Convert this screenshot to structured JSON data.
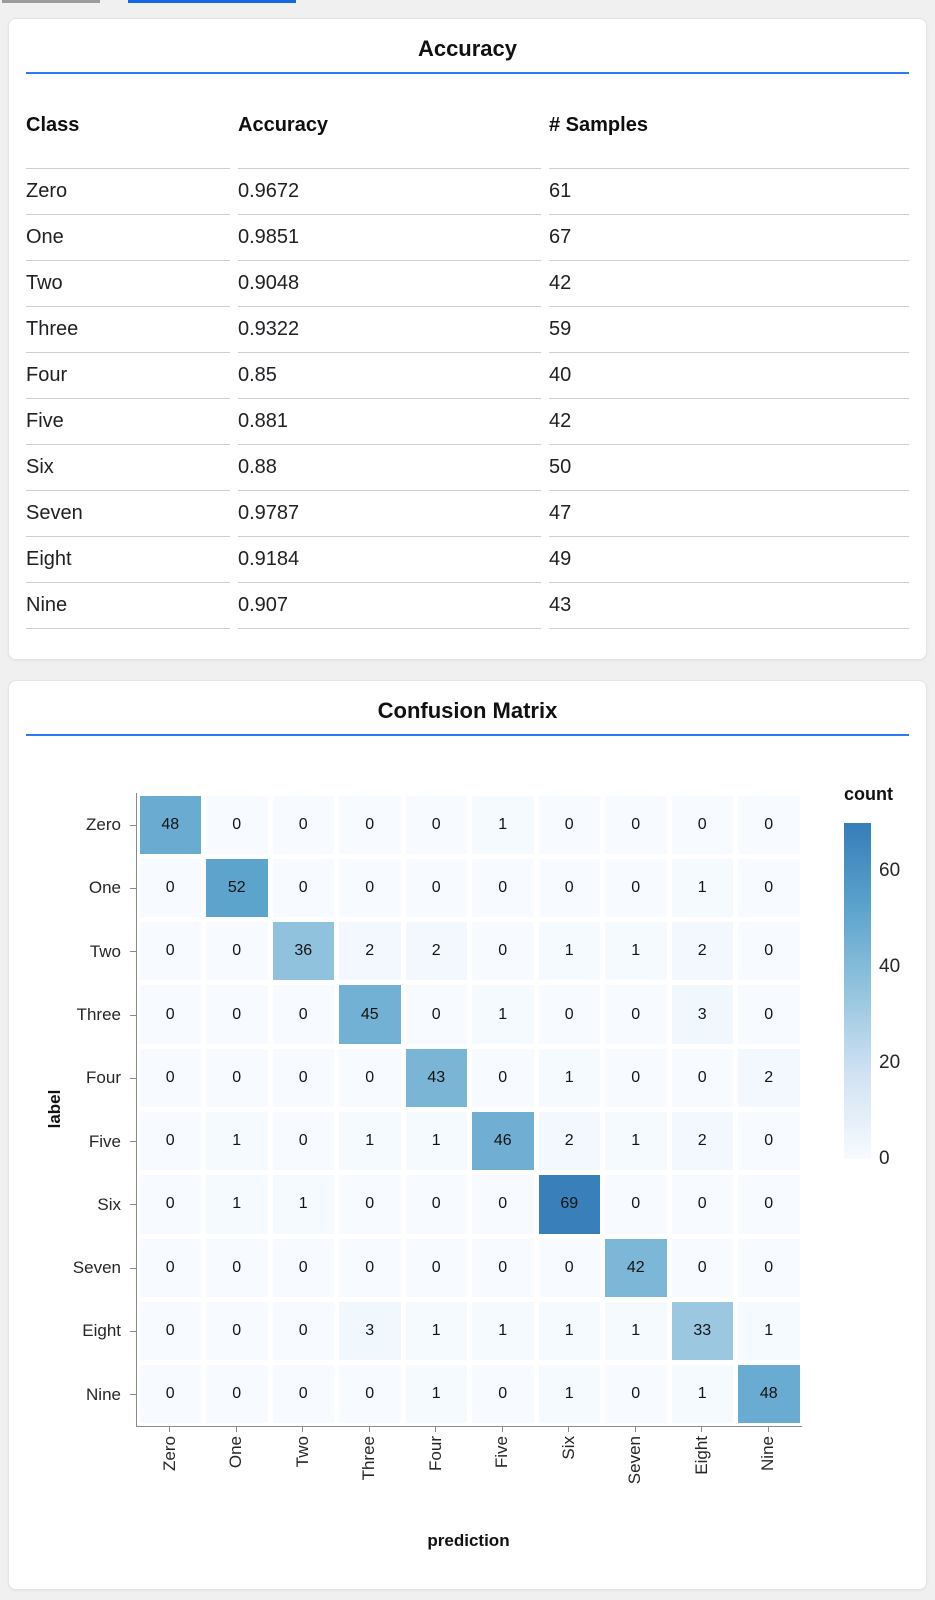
{
  "colors": {
    "accent_rule": "#2a7bf6",
    "top_bar_gray": "#9b9b9b",
    "top_bar_blue": "#1668e3",
    "heat_ramp": [
      "#f7fbff",
      "#d1e2f3",
      "#94c4de",
      "#5ba3cc",
      "#377db8"
    ]
  },
  "accuracy_table": {
    "title": "Accuracy",
    "columns": [
      "Class",
      "Accuracy",
      "# Samples"
    ],
    "rows": [
      [
        "Zero",
        "0.9672",
        "61"
      ],
      [
        "One",
        "0.9851",
        "67"
      ],
      [
        "Two",
        "0.9048",
        "42"
      ],
      [
        "Three",
        "0.9322",
        "59"
      ],
      [
        "Four",
        "0.85",
        "40"
      ],
      [
        "Five",
        "0.881",
        "42"
      ],
      [
        "Six",
        "0.88",
        "50"
      ],
      [
        "Seven",
        "0.9787",
        "47"
      ],
      [
        "Eight",
        "0.9184",
        "49"
      ],
      [
        "Nine",
        "0.907",
        "43"
      ]
    ]
  },
  "chart_data": {
    "type": "heatmap",
    "title": "Confusion Matrix",
    "xlabel": "prediction",
    "ylabel": "label",
    "x_categories": [
      "Zero",
      "One",
      "Two",
      "Three",
      "Four",
      "Five",
      "Six",
      "Seven",
      "Eight",
      "Nine"
    ],
    "y_categories": [
      "Zero",
      "One",
      "Two",
      "Three",
      "Four",
      "Five",
      "Six",
      "Seven",
      "Eight",
      "Nine"
    ],
    "matrix": [
      [
        48,
        0,
        0,
        0,
        0,
        1,
        0,
        0,
        0,
        0
      ],
      [
        0,
        52,
        0,
        0,
        0,
        0,
        0,
        0,
        1,
        0
      ],
      [
        0,
        0,
        36,
        2,
        2,
        0,
        1,
        1,
        2,
        0
      ],
      [
        0,
        0,
        0,
        45,
        0,
        1,
        0,
        0,
        3,
        0
      ],
      [
        0,
        0,
        0,
        0,
        43,
        0,
        1,
        0,
        0,
        2
      ],
      [
        0,
        1,
        0,
        1,
        1,
        46,
        2,
        1,
        2,
        0
      ],
      [
        0,
        1,
        1,
        0,
        0,
        0,
        69,
        0,
        0,
        0
      ],
      [
        0,
        0,
        0,
        0,
        0,
        0,
        0,
        42,
        0,
        0
      ],
      [
        0,
        0,
        0,
        3,
        1,
        1,
        1,
        1,
        33,
        1
      ],
      [
        0,
        0,
        0,
        0,
        1,
        0,
        1,
        0,
        1,
        48
      ]
    ],
    "legend": {
      "title": "count",
      "ticks": [
        60,
        40,
        20,
        0
      ],
      "domain": [
        0,
        70
      ]
    }
  }
}
